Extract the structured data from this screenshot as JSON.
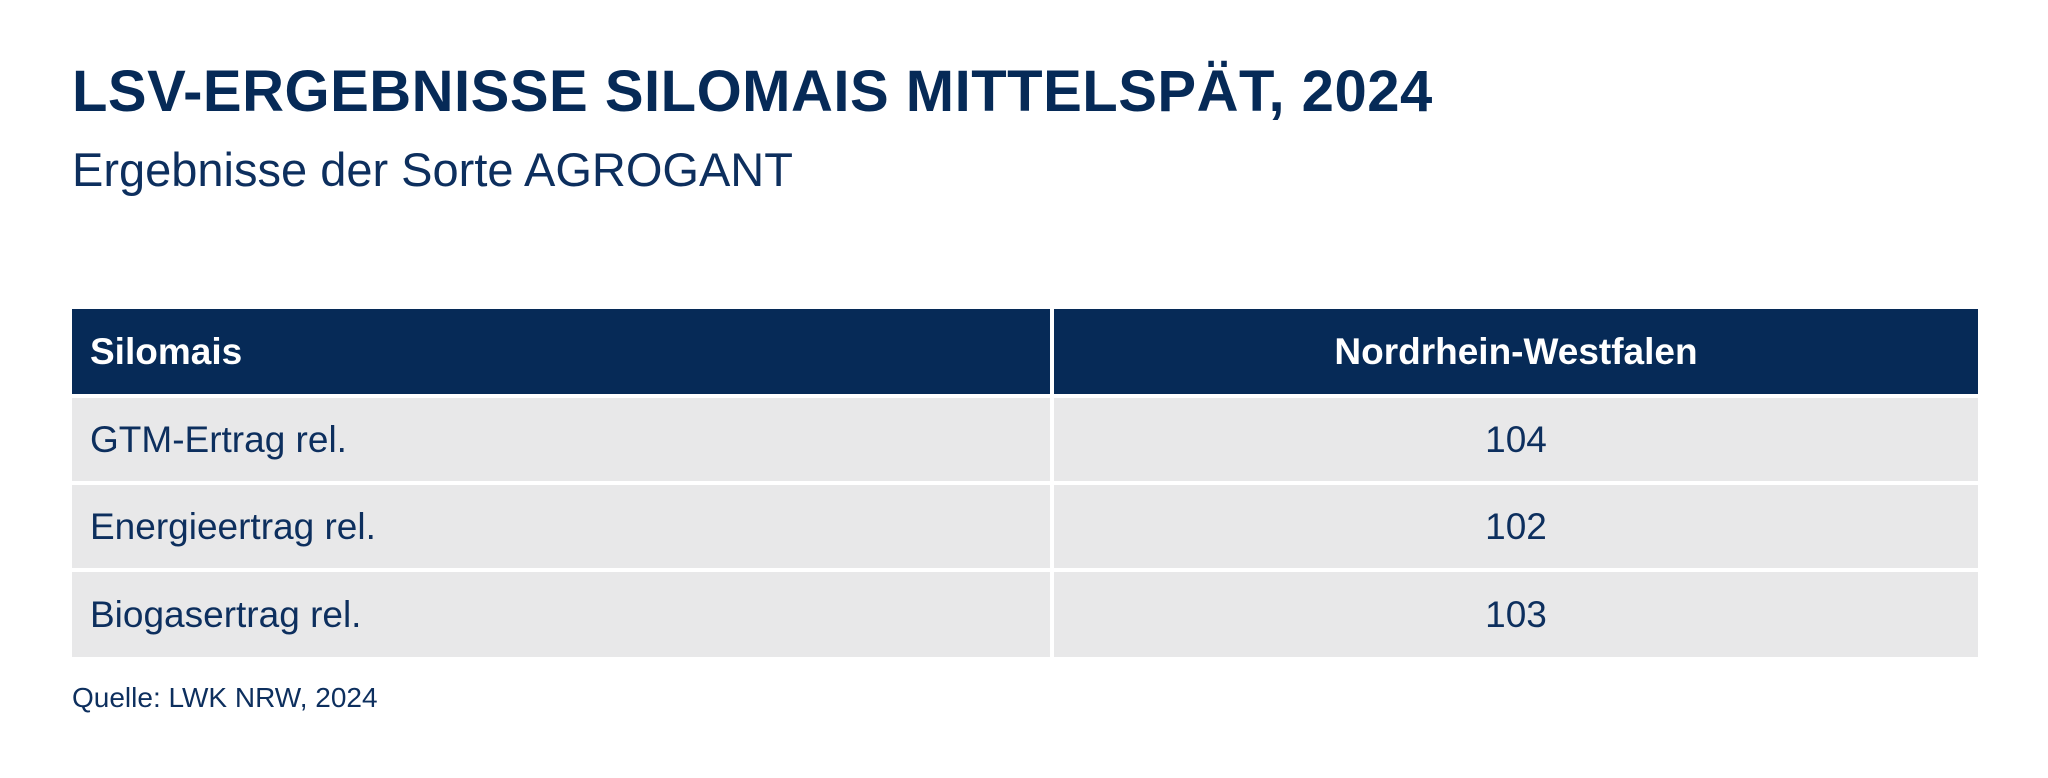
{
  "header": {
    "title": "LSV-ERGEBNISSE SILOMAIS MITTELSPÄT, 2024",
    "subtitle": "Ergebnisse der Sorte AGROGANT"
  },
  "colors": {
    "header_bg": "#062a57",
    "row_bg": "#e8e8e9",
    "text": "#0d2f5e"
  },
  "chart_data": {
    "type": "table",
    "columns": [
      "Silomais",
      "Nordrhein-Westfalen"
    ],
    "rows": [
      {
        "label": "GTM-Ertrag rel.",
        "value": "104"
      },
      {
        "label": "Energieertrag rel.",
        "value": "102"
      },
      {
        "label": "Biogasertrag rel.",
        "value": "103"
      }
    ]
  },
  "footer": {
    "source": "Quelle: LWK NRW, 2024"
  }
}
